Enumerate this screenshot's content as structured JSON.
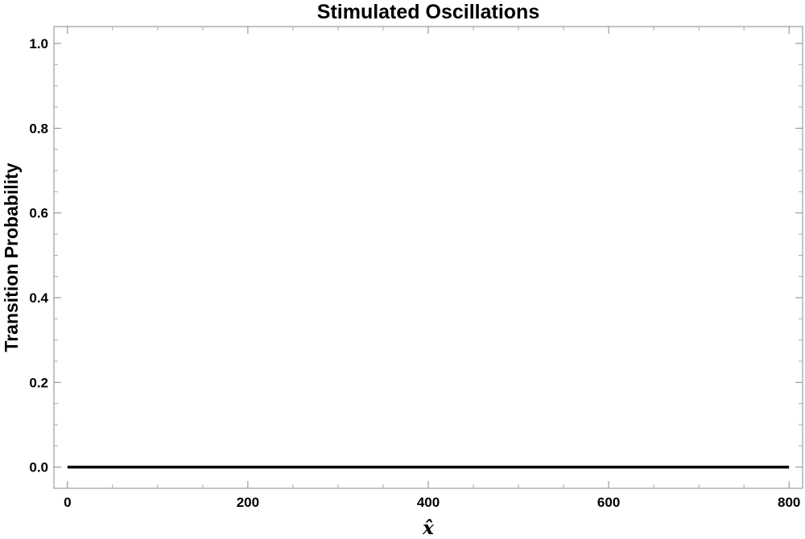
{
  "chart_data": {
    "type": "line",
    "title": "Stimulated Oscillations",
    "xlabel": "x̂",
    "ylabel": "Transition Probability",
    "xlim": [
      -15,
      815
    ],
    "ylim": [
      -0.05,
      1.04
    ],
    "x_ticks": [
      0,
      200,
      400,
      600,
      800
    ],
    "x_tick_labels": [
      "0",
      "200",
      "400",
      "600",
      "800"
    ],
    "y_ticks": [
      0.0,
      0.2,
      0.4,
      0.6,
      0.8,
      1.0
    ],
    "y_tick_labels": [
      "0.0",
      "0.2",
      "0.4",
      "0.6",
      "0.8",
      "1.0"
    ],
    "grid": false,
    "series": [
      {
        "x": [
          0,
          800
        ],
        "y": [
          0,
          0
        ],
        "color": "#000000"
      }
    ]
  }
}
